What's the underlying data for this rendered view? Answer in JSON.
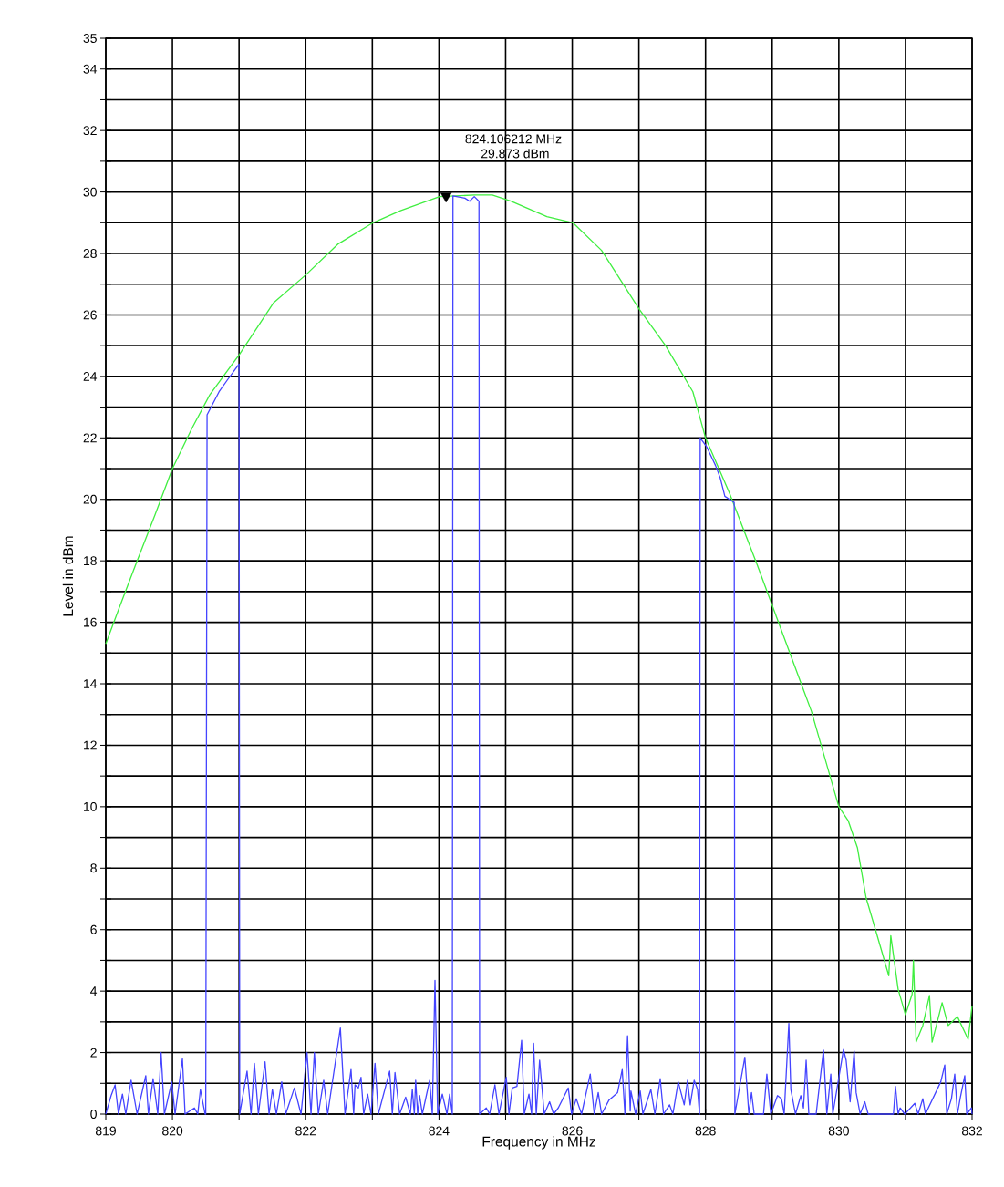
{
  "chart_data": {
    "type": "line",
    "xlabel": "Frequency in MHz",
    "ylabel": "Level in dBm",
    "xlim": [
      819,
      832
    ],
    "ylim": [
      0,
      35
    ],
    "xticks": [
      819,
      820,
      {
        "value": 821,
        "label": null
      },
      822,
      {
        "value": 823,
        "label": null
      },
      824,
      {
        "value": 825,
        "label": null
      },
      826,
      {
        "value": 827,
        "label": null
      },
      828,
      {
        "value": 829,
        "label": null
      },
      830,
      {
        "value": 831,
        "label": null
      },
      832
    ],
    "yticks": [
      0,
      {
        "value": 1,
        "label": null
      },
      2,
      {
        "value": 3,
        "label": null
      },
      4,
      {
        "value": 5,
        "label": null
      },
      6,
      {
        "value": 7,
        "label": null
      },
      8,
      {
        "value": 9,
        "label": null
      },
      10,
      {
        "value": 11,
        "label": null
      },
      12,
      {
        "value": 13,
        "label": null
      },
      14,
      {
        "value": 15,
        "label": null
      },
      16,
      {
        "value": 17,
        "label": null
      },
      18,
      {
        "value": 19,
        "label": null
      },
      20,
      {
        "value": 21,
        "label": null
      },
      22,
      {
        "value": 23,
        "label": null
      },
      24,
      {
        "value": 25,
        "label": null
      },
      26,
      {
        "value": 27,
        "label": null
      },
      28,
      {
        "value": 29,
        "label": null
      },
      30,
      {
        "value": 31,
        "label": null
      },
      32,
      {
        "value": 33,
        "label": null
      },
      34,
      35
    ],
    "grid": true,
    "series": [
      {
        "color": "#40ee40",
        "x": [
          819.0,
          819.19,
          819.47,
          819.74,
          820.0,
          820.29,
          820.56,
          821.0,
          821.52,
          822.0,
          822.48,
          823.01,
          823.43,
          824.01,
          824.53,
          824.8,
          825.08,
          825.62,
          826.01,
          826.44,
          827.0,
          827.4,
          827.81,
          828.0,
          828.36,
          828.77,
          829.18,
          829.59,
          830.0,
          830.14,
          830.28,
          830.41,
          830.55,
          830.75,
          830.78,
          830.89,
          831.0,
          831.1,
          831.12,
          831.16,
          831.26,
          831.36,
          831.4,
          831.55,
          831.64,
          831.78,
          831.94,
          832.0
        ],
        "values": [
          15.3,
          16.4,
          18.0,
          19.5,
          21.0,
          22.3,
          23.4,
          24.7,
          26.4,
          27.3,
          28.3,
          29.0,
          29.4,
          29.85,
          29.9,
          29.9,
          29.7,
          29.2,
          29.0,
          28.1,
          26.2,
          25.0,
          23.5,
          22.0,
          20.2,
          17.9,
          15.5,
          13.1,
          10.0,
          9.55,
          8.66,
          7.03,
          6.0,
          4.5,
          5.8,
          4.06,
          3.23,
          3.9,
          5.0,
          2.34,
          2.88,
          3.86,
          2.34,
          3.62,
          2.88,
          3.17,
          2.43,
          3.53
        ]
      },
      {
        "color": "#4444ff",
        "x": [
          819.0,
          819.08,
          819.14,
          819.19,
          819.25,
          819.3,
          819.38,
          819.47,
          819.6,
          819.64,
          819.71,
          819.78,
          819.83,
          819.88,
          819.99,
          820.04,
          820.15,
          820.19,
          820.33,
          820.38,
          820.42,
          820.49,
          820.5,
          820.52,
          820.7,
          820.83,
          821.0,
          821.01,
          821.12,
          821.18,
          821.23,
          821.29,
          821.39,
          821.45,
          821.5,
          821.56,
          821.64,
          821.7,
          821.83,
          821.93,
          822.02,
          822.08,
          822.13,
          822.19,
          822.27,
          822.33,
          822.52,
          822.59,
          822.68,
          822.72,
          822.74,
          822.79,
          822.83,
          822.87,
          822.93,
          822.98,
          823.04,
          823.09,
          823.26,
          823.3,
          823.34,
          823.41,
          823.5,
          823.57,
          823.6,
          823.63,
          823.65,
          823.68,
          823.71,
          823.75,
          823.86,
          823.9,
          823.94,
          823.98,
          824.05,
          824.12,
          824.16,
          824.2,
          824.21,
          824.39,
          824.46,
          824.53,
          824.6,
          824.61,
          824.71,
          824.76,
          824.84,
          824.9,
          825.01,
          825.05,
          825.1,
          825.17,
          825.24,
          825.28,
          825.35,
          825.39,
          825.42,
          825.46,
          825.51,
          825.58,
          825.66,
          825.72,
          825.79,
          825.94,
          825.99,
          826.06,
          826.14,
          826.27,
          826.33,
          826.39,
          826.44,
          826.55,
          826.68,
          826.75,
          826.79,
          826.83,
          826.87,
          826.88,
          826.95,
          827.02,
          827.06,
          827.18,
          827.24,
          827.32,
          827.37,
          827.46,
          827.51,
          827.59,
          827.68,
          827.73,
          827.77,
          827.83,
          827.88,
          827.91,
          827.92,
          828.02,
          828.15,
          828.22,
          828.29,
          828.36,
          828.43,
          828.44,
          828.59,
          828.65,
          828.69,
          828.73,
          828.87,
          828.92,
          828.98,
          829.08,
          829.14,
          829.18,
          829.25,
          829.28,
          829.35,
          829.43,
          829.47,
          829.51,
          829.55,
          829.66,
          829.77,
          829.82,
          829.88,
          829.91,
          830.07,
          830.11,
          830.17,
          830.23,
          830.26,
          830.32,
          830.39,
          830.44,
          830.82,
          830.85,
          830.89,
          830.92,
          830.99,
          831.14,
          831.19,
          831.26,
          831.3,
          831.53,
          831.59,
          831.62,
          831.69,
          831.74,
          831.78,
          831.82,
          831.89,
          831.92,
          831.99,
          832.0
        ],
        "values": [
          0,
          0.6,
          0.95,
          0,
          0.65,
          0,
          1.1,
          0,
          1.25,
          0,
          1.15,
          0,
          2.0,
          0,
          1.05,
          0,
          1.8,
          0,
          0.2,
          0,
          0.8,
          0,
          0,
          22.75,
          23.5,
          23.9,
          24.4,
          0,
          1.4,
          0,
          1.65,
          0,
          1.7,
          0,
          0.8,
          0,
          1.05,
          0,
          0.85,
          0,
          2.0,
          0,
          2.0,
          0,
          1.1,
          0,
          2.8,
          0,
          1.45,
          0,
          0.95,
          0.85,
          1.2,
          0,
          0.65,
          0,
          1.65,
          0,
          1.4,
          0,
          1.35,
          0,
          0.55,
          0,
          0.8,
          0,
          1.1,
          0,
          0.6,
          0,
          1.1,
          0,
          4.35,
          0,
          0.65,
          0,
          0.65,
          0,
          29.87,
          29.8,
          29.7,
          29.85,
          29.7,
          0,
          0.2,
          0,
          0.95,
          0,
          1.2,
          0,
          0.85,
          0.9,
          2.4,
          0,
          0.65,
          0,
          2.3,
          0,
          1.75,
          0,
          0.4,
          0,
          0.2,
          0.85,
          0,
          0.5,
          0,
          1.3,
          0,
          0.7,
          0,
          0.45,
          0.7,
          1.45,
          0,
          2.55,
          0.1,
          0.75,
          0,
          0.75,
          0,
          0.8,
          0,
          1.15,
          0,
          0.3,
          0,
          1.05,
          0.3,
          1.1,
          0.3,
          1.1,
          0.8,
          0,
          22.0,
          21.7,
          21.1,
          20.7,
          20.1,
          20.0,
          19.9,
          0,
          1.85,
          0,
          0.7,
          0,
          0,
          1.3,
          0,
          0.6,
          0.5,
          0,
          2.95,
          0.8,
          0,
          0.6,
          0.2,
          1.75,
          0,
          0,
          2.08,
          0,
          1.3,
          0,
          2.1,
          1.75,
          0.4,
          2.05,
          0.7,
          0,
          0.4,
          0,
          0,
          0.9,
          0,
          0.2,
          0,
          0.35,
          0,
          0.5,
          0,
          1.05,
          1.6,
          0,
          0.5,
          1.3,
          0,
          0.5,
          1.25,
          0,
          0.2,
          0
        ]
      },
      {
        "type": "scatter",
        "color": "#000000",
        "marker": "triangle",
        "x": [
          824.106212
        ],
        "values": [
          29.873
        ]
      }
    ],
    "annotations": [
      "824.106212 MHz",
      "29.873 dBm"
    ]
  }
}
